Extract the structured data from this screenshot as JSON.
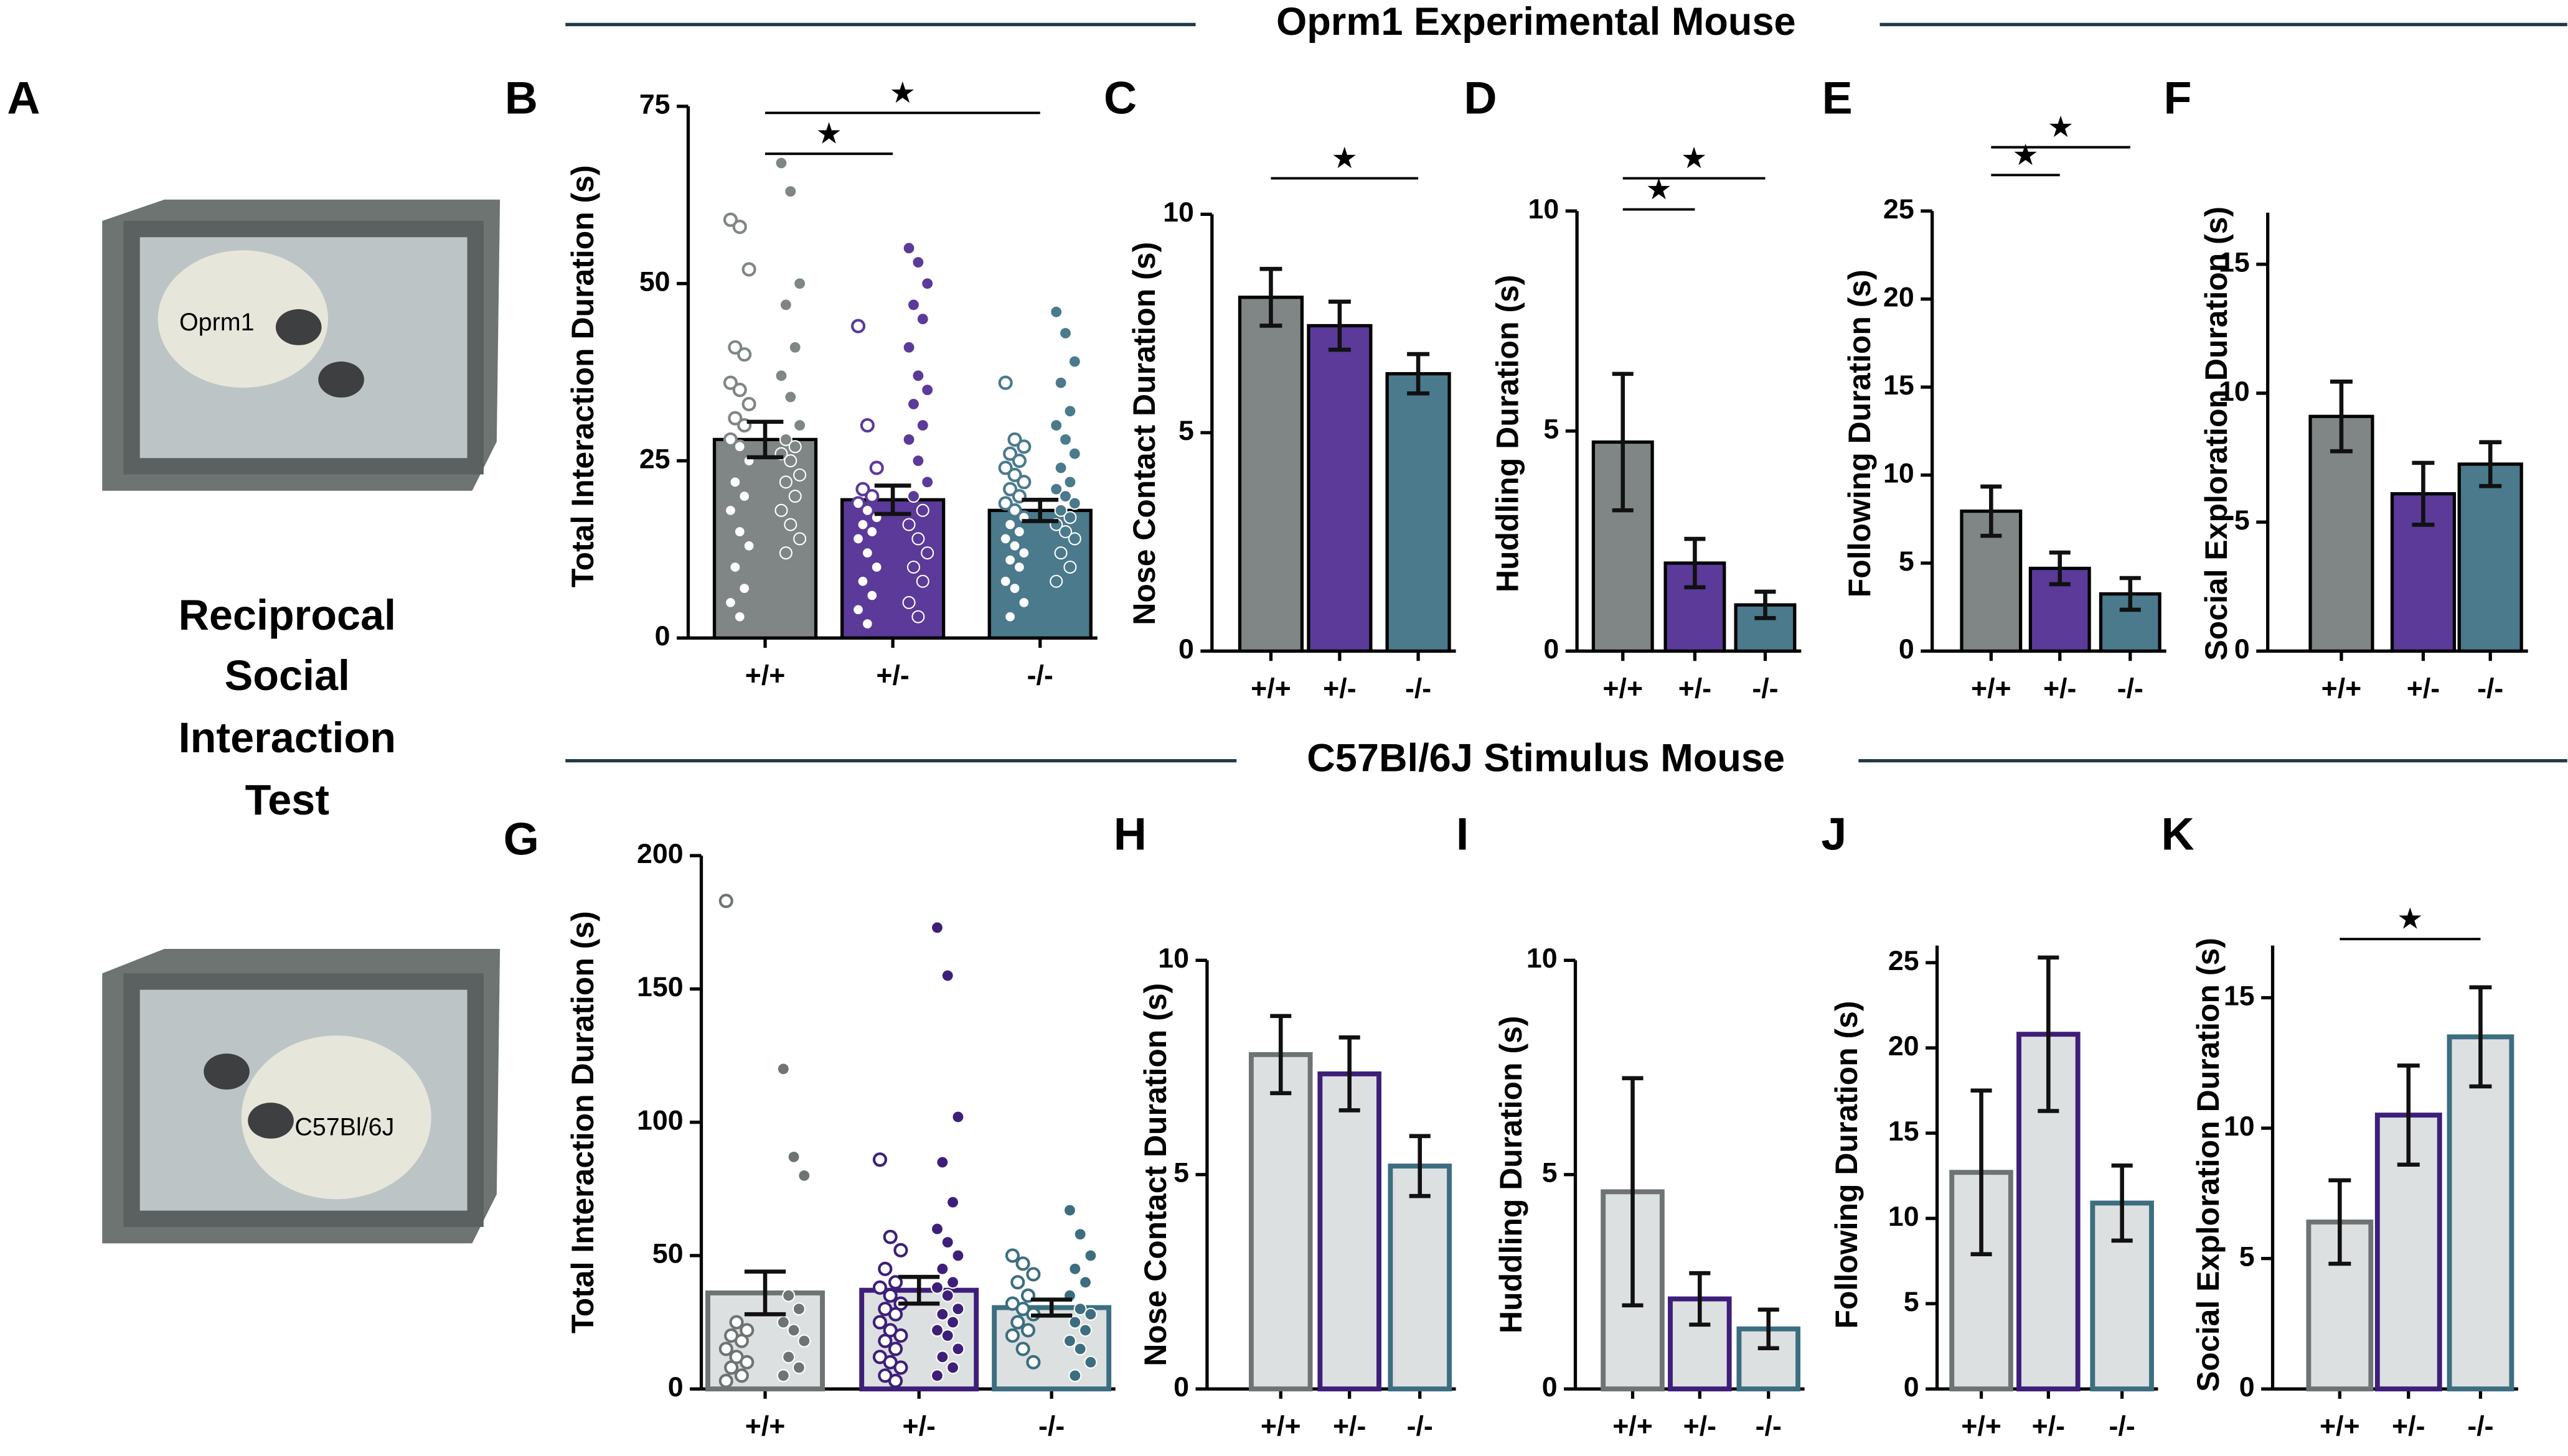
{
  "section_titles": [
    "Oprm1 Experimental Mouse",
    "C57Bl/6J Stimulus Mouse"
  ],
  "panel_a": {
    "label": "A",
    "title_lines": [
      "Reciprocal",
      "Social",
      "Interaction",
      "Test"
    ],
    "cage_labels": [
      "Oprm1",
      "C57Bl/6J"
    ]
  },
  "chart_data": [
    {
      "type": "bar",
      "panel": "B",
      "ylabel": "Total Interaction Duration (s)",
      "categories": [
        "+/+",
        "+/-",
        "-/-"
      ],
      "values": [
        28,
        19.5,
        18
      ],
      "errors": [
        2.5,
        2,
        1.5
      ],
      "colors": [
        "#7f8685",
        "#5b3a9a",
        "#4a7a8c"
      ],
      "ylim": [
        0,
        75
      ],
      "yticks": [
        0,
        25,
        50,
        75
      ],
      "points_open": [
        [
          59,
          58,
          52,
          41,
          40,
          36,
          35,
          33,
          31,
          30,
          28,
          27,
          25,
          22,
          20,
          18,
          15,
          13,
          10,
          7,
          5,
          3
        ],
        [
          44,
          30,
          24,
          21,
          20,
          19,
          18,
          17,
          16,
          15,
          14,
          12,
          10,
          8,
          6,
          4,
          2
        ],
        [
          36,
          28,
          27,
          26,
          25,
          24,
          23,
          22,
          21,
          20,
          19,
          18,
          17,
          16,
          15,
          14,
          13,
          12,
          11,
          10,
          8,
          7,
          5,
          3
        ]
      ],
      "points_filled": [
        [
          67,
          63,
          50,
          47,
          41,
          37,
          34,
          30,
          28,
          27,
          26,
          25,
          23,
          22,
          20,
          18,
          16,
          14,
          12
        ],
        [
          55,
          53,
          50,
          47,
          45,
          41,
          37,
          35,
          33,
          30,
          28,
          25,
          22,
          20,
          18,
          16,
          14,
          12,
          10,
          8,
          5,
          3
        ],
        [
          46,
          43,
          39,
          36,
          32,
          30,
          28,
          26,
          24,
          22,
          21,
          20,
          19,
          18,
          17,
          16,
          15,
          14,
          12,
          10,
          8
        ]
      ],
      "comparisons": [
        {
          "between": [
            "+/+",
            "+/-"
          ],
          "label": "★"
        },
        {
          "between": [
            "+/+",
            "-/-"
          ],
          "label": "★"
        }
      ]
    },
    {
      "type": "bar",
      "panel": "C",
      "ylabel": "Nose Contact Duration (s)",
      "categories": [
        "+/+",
        "+/-",
        "-/-"
      ],
      "values": [
        8.1,
        7.45,
        6.35
      ],
      "errors": [
        0.65,
        0.55,
        0.45
      ],
      "colors": [
        "#7f8685",
        "#5b3a9a",
        "#4a7a8c"
      ],
      "ylim": [
        0,
        10
      ],
      "yticks": [
        0,
        5,
        10
      ],
      "comparisons": [
        {
          "between": [
            "+/+",
            "-/-"
          ],
          "label": "★"
        }
      ]
    },
    {
      "type": "bar",
      "panel": "D",
      "ylabel": "Huddling Duration (s)",
      "categories": [
        "+/+",
        "+/-",
        "-/-"
      ],
      "values": [
        4.75,
        2.0,
        1.05
      ],
      "errors": [
        1.55,
        0.55,
        0.3
      ],
      "colors": [
        "#7f8685",
        "#5b3a9a",
        "#4a7a8c"
      ],
      "ylim": [
        0,
        10
      ],
      "yticks": [
        0,
        5,
        10
      ],
      "comparisons": [
        {
          "between": [
            "+/+",
            "+/-"
          ],
          "label": "★"
        },
        {
          "between": [
            "+/+",
            "-/-"
          ],
          "label": "★"
        }
      ]
    },
    {
      "type": "bar",
      "panel": "E",
      "ylabel": "Following Duration (s)",
      "categories": [
        "+/+",
        "+/-",
        "-/-"
      ],
      "values": [
        7.95,
        4.7,
        3.25
      ],
      "errors": [
        1.4,
        0.9,
        0.9
      ],
      "colors": [
        "#7f8685",
        "#5b3a9a",
        "#4a7a8c"
      ],
      "ylim": [
        0,
        25
      ],
      "yticks": [
        0,
        5,
        10,
        15,
        20,
        25
      ],
      "comparisons": [
        {
          "between": [
            "+/+",
            "+/-"
          ],
          "label": "★"
        },
        {
          "between": [
            "+/+",
            "-/-"
          ],
          "label": "★"
        }
      ]
    },
    {
      "type": "bar",
      "panel": "F",
      "ylabel": "Social Exploration Duration  (s)",
      "categories": [
        "+/+",
        "+/-",
        "-/-"
      ],
      "values": [
        9.1,
        6.1,
        7.25
      ],
      "errors": [
        1.35,
        1.2,
        0.85
      ],
      "colors": [
        "#7f8685",
        "#5b3a9a",
        "#4a7a8c"
      ],
      "ylim": [
        0,
        17
      ],
      "yticks": [
        0,
        5,
        10,
        15
      ]
    },
    {
      "type": "bar",
      "panel": "G",
      "ylabel": "Total Interaction Duration (s)",
      "categories": [
        "+/+",
        "+/-",
        "-/-"
      ],
      "values": [
        36,
        37,
        30.5
      ],
      "errors": [
        8,
        5,
        3
      ],
      "colors": [
        "#6e7473",
        "#3d1f7a",
        "#3c6e80"
      ],
      "fill": "#dde0e0",
      "ylim": [
        0,
        200
      ],
      "yticks": [
        0,
        50,
        100,
        150,
        200
      ],
      "points_open": [
        [
          183,
          25,
          22,
          20,
          18,
          15,
          12,
          10,
          8,
          5,
          3
        ],
        [
          86,
          57,
          52,
          45,
          40,
          38,
          35,
          32,
          30,
          28,
          25,
          22,
          20,
          18,
          15,
          12,
          10,
          8,
          5,
          3
        ],
        [
          50,
          47,
          43,
          40,
          35,
          32,
          30,
          28,
          25,
          22,
          20,
          15,
          10
        ]
      ],
      "points_filled": [
        [
          120,
          87,
          80,
          35,
          30,
          25,
          22,
          18,
          12,
          8,
          5
        ],
        [
          173,
          155,
          102,
          85,
          70,
          60,
          55,
          50,
          45,
          40,
          38,
          35,
          30,
          28,
          25,
          22,
          20,
          15,
          12,
          8,
          5
        ],
        [
          67,
          58,
          50,
          45,
          40,
          35,
          30,
          28,
          25,
          22,
          18,
          15,
          10,
          5
        ]
      ]
    },
    {
      "type": "bar",
      "panel": "H",
      "ylabel": "Nose Contact Duration (s)",
      "categories": [
        "+/+",
        "+/-",
        "-/-"
      ],
      "values": [
        7.8,
        7.35,
        5.2
      ],
      "errors": [
        0.9,
        0.85,
        0.7
      ],
      "colors": [
        "#6e7473",
        "#3d1f7a",
        "#3c6e80"
      ],
      "fill": "#dde0e0",
      "ylim": [
        0,
        10
      ],
      "yticks": [
        0,
        5,
        10
      ]
    },
    {
      "type": "bar",
      "panel": "I",
      "ylabel": "Huddling Duration (s)",
      "categories": [
        "+/+",
        "+/-",
        "-/-"
      ],
      "values": [
        4.6,
        2.1,
        1.4
      ],
      "errors": [
        2.65,
        0.6,
        0.45
      ],
      "colors": [
        "#6e7473",
        "#3d1f7a",
        "#3c6e80"
      ],
      "fill": "#dde0e0",
      "ylim": [
        0,
        10
      ],
      "yticks": [
        0,
        5,
        10
      ]
    },
    {
      "type": "bar",
      "panel": "J",
      "ylabel": "Following Duration (s)",
      "categories": [
        "+/+",
        "+/-",
        "-/-"
      ],
      "values": [
        12.7,
        20.8,
        10.9
      ],
      "errors": [
        4.8,
        4.5,
        2.2
      ],
      "colors": [
        "#6e7473",
        "#3d1f7a",
        "#3c6e80"
      ],
      "fill": "#dde0e0",
      "ylim": [
        0,
        26
      ],
      "yticks": [
        0,
        5,
        10,
        15,
        20,
        25
      ]
    },
    {
      "type": "bar",
      "panel": "K",
      "ylabel": "Social Exploration Duration (s)",
      "categories": [
        "+/+",
        "+/-",
        "-/-"
      ],
      "values": [
        6.4,
        10.5,
        13.5
      ],
      "errors": [
        1.6,
        1.9,
        1.9
      ],
      "colors": [
        "#6e7473",
        "#3d1f7a",
        "#3c6e80"
      ],
      "fill": "#dde0e0",
      "ylim": [
        0,
        17
      ],
      "yticks": [
        0,
        5,
        10,
        15
      ],
      "comparisons": [
        {
          "between": [
            "+/+",
            "-/-"
          ],
          "label": "★"
        }
      ]
    }
  ]
}
